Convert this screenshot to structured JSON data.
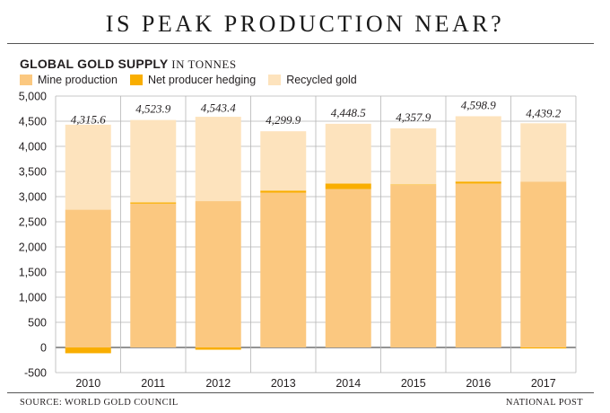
{
  "header": {
    "title": "IS PEAK PRODUCTION NEAR?",
    "subtitle": "GLOBAL GOLD SUPPLY",
    "unit": "IN TONNES"
  },
  "footer": {
    "source": "SOURCE: WORLD GOLD COUNCIL",
    "credit": "NATIONAL POST"
  },
  "colors": {
    "mine": "#fbc880",
    "hedging": "#f9ae00",
    "recycled": "#fde3bd",
    "grid": "#b5b5b5",
    "zero_line": "#555555"
  },
  "chart_data": {
    "type": "bar",
    "stacked": true,
    "title": "GLOBAL GOLD SUPPLY",
    "ylabel": "IN TONNES",
    "xlabel": "",
    "categories": [
      "2010",
      "2011",
      "2012",
      "2013",
      "2014",
      "2015",
      "2016",
      "2017"
    ],
    "series": [
      {
        "name": "Mine production",
        "key": "mine",
        "values": [
          2740,
          2860,
          2910,
          3080,
          3150,
          3230,
          3260,
          3300
        ]
      },
      {
        "name": "Net producer hedging",
        "key": "hedging",
        "values": [
          -115,
          25,
          -45,
          40,
          110,
          10,
          40,
          -20
        ]
      },
      {
        "name": "Recycled gold",
        "key": "recycled",
        "values": [
          1691,
          1639,
          1678,
          1180,
          1189,
          1118,
          1299,
          1159
        ]
      }
    ],
    "totals": [
      4315.6,
      4523.9,
      4543.4,
      4299.9,
      4448.5,
      4357.9,
      4598.9,
      4439.2
    ],
    "total_labels": [
      "4,315.6",
      "4,523.9",
      "4,543.4",
      "4,299.9",
      "4,448.5",
      "4,357.9",
      "4,598.9",
      "4,439.2"
    ],
    "ylim": [
      -500,
      5000
    ],
    "yticks": [
      -500,
      0,
      500,
      1000,
      1500,
      2000,
      2500,
      3000,
      3500,
      4000,
      4500,
      5000
    ],
    "ytick_labels": [
      "-500",
      "0",
      "500",
      "1,000",
      "1,500",
      "2,000",
      "2,500",
      "3,000",
      "3,500",
      "4,000",
      "4,500",
      "5,000"
    ],
    "legend_position": "top-left",
    "grid": true
  }
}
